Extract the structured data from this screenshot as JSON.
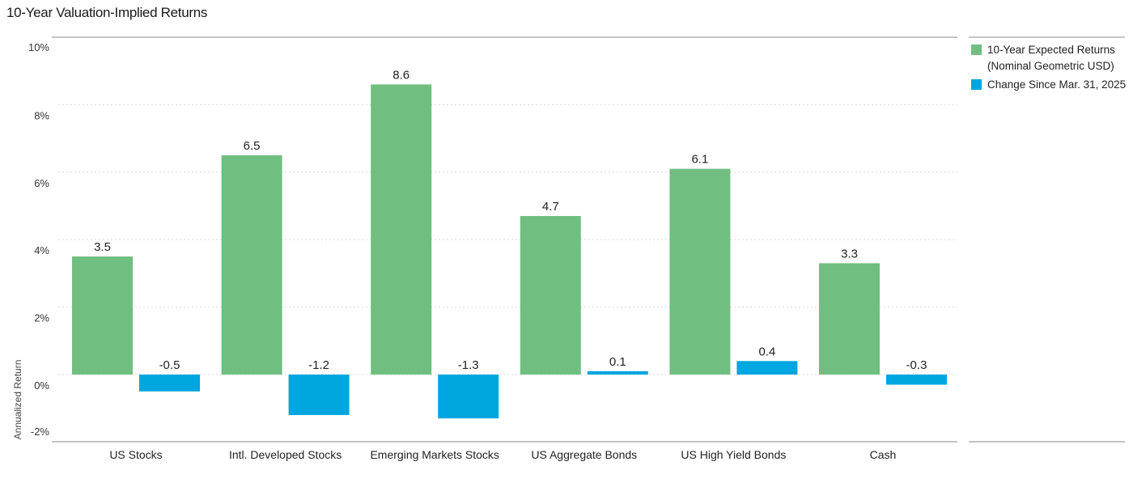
{
  "chart_data": {
    "type": "bar",
    "title": "10-Year Valuation-Implied Returns",
    "ylabel": "Annualized Return",
    "xlabel": "",
    "ylim": [
      -2,
      10
    ],
    "yticks": [
      10,
      8,
      6,
      4,
      2,
      0,
      -2
    ],
    "ytick_labels": [
      "10%",
      "8%",
      "6%",
      "4%",
      "2%",
      "0%",
      "-2%"
    ],
    "grid": true,
    "legend_position": "right",
    "categories": [
      "US Stocks",
      "Intl. Developed Stocks",
      "Emerging Markets Stocks",
      "US Aggregate Bonds",
      "US High Yield Bonds",
      "Cash"
    ],
    "series": [
      {
        "name": "10-Year Expected Returns (Nominal Geometric USD)",
        "legend_lines": [
          "10-Year Expected Returns",
          "(Nominal Geometric USD)"
        ],
        "color": "#70bf80",
        "values": [
          3.5,
          6.5,
          8.6,
          4.7,
          6.1,
          3.3
        ],
        "labels": [
          "3.5",
          "6.5",
          "8.6",
          "4.7",
          "6.1",
          "3.3"
        ]
      },
      {
        "name": "Change Since Mar. 31, 2025",
        "legend_lines": [
          "Change Since Mar. 31, 2025"
        ],
        "color": "#00a6e0",
        "values": [
          -0.5,
          -1.2,
          -1.3,
          0.1,
          0.4,
          -0.3
        ],
        "labels": [
          "-0.5",
          "-1.2",
          "-1.3",
          "0.1",
          "0.4",
          "-0.3"
        ]
      }
    ]
  }
}
